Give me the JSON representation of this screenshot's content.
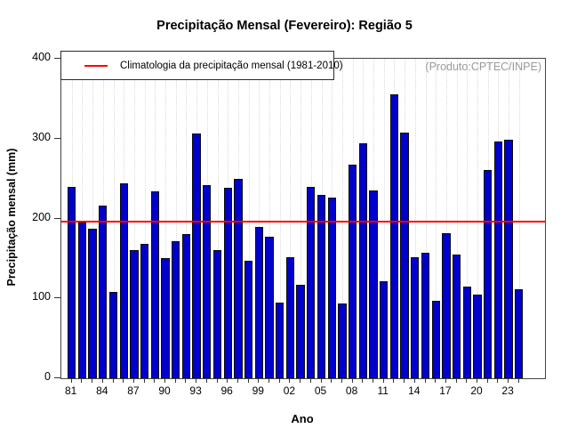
{
  "title": "Precipitação Mensal (Fevereiro): Região 5",
  "annotation": "(Produto:CPTEC/INPE)",
  "legend_label": "Climatologia da precipitação mensal (1981-2010)",
  "colors": {
    "bar": "#0000CC",
    "bar_border": "#0b0b0b",
    "climatology_line": "#FF0000",
    "grid": "#D9D9D9",
    "annotation_text": "#9A9A9A"
  },
  "chart_data": {
    "type": "bar",
    "title": "Precipitação Mensal (Fevereiro): Região 5",
    "xlabel": "Ano",
    "ylabel": "Precipitação mensal (mm)",
    "ylim": [
      0,
      400
    ],
    "y_ticks": [
      0,
      100,
      200,
      300,
      400
    ],
    "grid": "vertical-dotted",
    "legend_position": "top-left",
    "legend_label": "Climatologia da precipitação mensal (1981-2010)",
    "annotation": "(Produto:CPTEC/INPE)",
    "climatology_value": 197,
    "x_label_every": 3,
    "categories": [
      "81",
      "82",
      "83",
      "84",
      "85",
      "86",
      "87",
      "88",
      "89",
      "90",
      "91",
      "92",
      "93",
      "94",
      "95",
      "96",
      "97",
      "98",
      "99",
      "00",
      "01",
      "02",
      "03",
      "04",
      "05",
      "06",
      "07",
      "08",
      "09",
      "10",
      "11",
      "12",
      "13",
      "14",
      "15",
      "16",
      "17",
      "18",
      "19",
      "20",
      "21",
      "22",
      "23",
      "24"
    ],
    "values": [
      240,
      195,
      187,
      216,
      108,
      244,
      160,
      168,
      234,
      150,
      172,
      180,
      306,
      242,
      160,
      238,
      250,
      147,
      189,
      177,
      95,
      151,
      117,
      240,
      230,
      226,
      94,
      267,
      294,
      235,
      121,
      355,
      308,
      152,
      157,
      97,
      182,
      155,
      115,
      105,
      261,
      296,
      299,
      111
    ]
  }
}
